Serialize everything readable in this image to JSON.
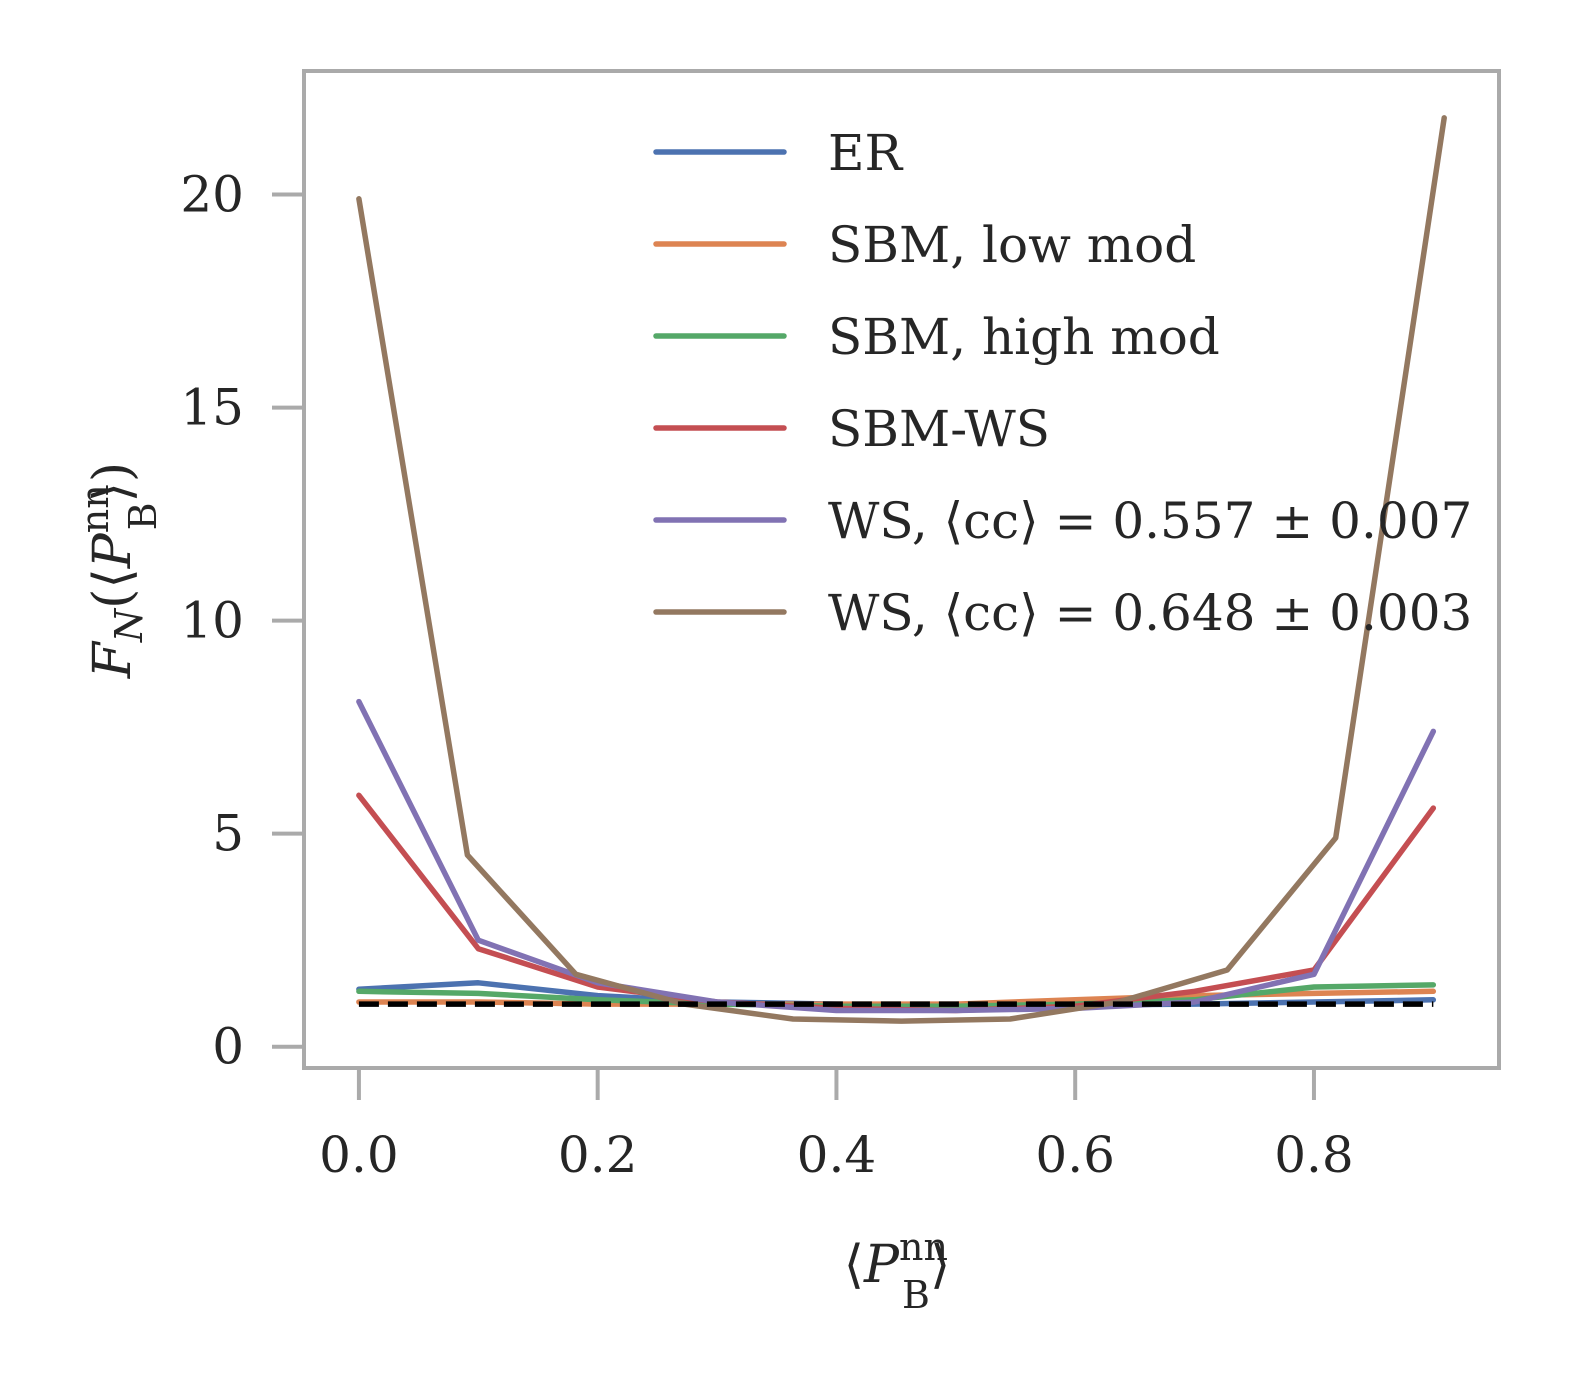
{
  "chart_data": {
    "type": "line",
    "xlabel": {
      "open": "⟨",
      "var": "P",
      "sup": "nn",
      "sub": "B",
      "close": "⟩"
    },
    "ylabel": {
      "prefix": "F",
      "prefix_sub": "N",
      "open": "(⟨",
      "var": "P",
      "sup": "nn",
      "sub": "B",
      "close": "⟩)"
    },
    "xlim": [
      -0.046,
      0.955
    ],
    "ylim": [
      -0.5,
      22.9
    ],
    "xticks": [
      {
        "value": 0.0,
        "label": "0.0"
      },
      {
        "value": 0.2,
        "label": "0.2"
      },
      {
        "value": 0.4,
        "label": "0.4"
      },
      {
        "value": 0.6,
        "label": "0.6"
      },
      {
        "value": 0.8,
        "label": "0.8"
      }
    ],
    "yticks": [
      {
        "value": 0,
        "label": "0"
      },
      {
        "value": 5,
        "label": "5"
      },
      {
        "value": 10,
        "label": "10"
      },
      {
        "value": 15,
        "label": "15"
      },
      {
        "value": 20,
        "label": "20"
      }
    ],
    "grid": false,
    "legend_position": "top-right",
    "x": [
      0.0,
      0.1,
      0.2,
      0.3,
      0.4,
      0.5,
      0.6,
      0.7,
      0.8,
      0.9
    ],
    "series": [
      {
        "name": "ER",
        "color": "#4c72b0",
        "x": [
          0.0,
          0.1,
          0.2,
          0.3,
          0.4,
          0.5,
          0.6,
          0.7,
          0.8,
          0.9
        ],
        "values": [
          1.35,
          1.5,
          1.2,
          1.05,
          1.0,
          0.95,
          0.98,
          1.0,
          1.05,
          1.1
        ]
      },
      {
        "name": "SBM, low mod",
        "color": "#dd8452",
        "x": [
          0.0,
          0.1,
          0.2,
          0.3,
          0.4,
          0.5,
          0.6,
          0.7,
          0.8,
          0.9
        ],
        "values": [
          1.05,
          1.05,
          1.0,
          1.0,
          1.0,
          1.0,
          1.1,
          1.2,
          1.25,
          1.3
        ]
      },
      {
        "name": "SBM, high mod",
        "color": "#55a868",
        "x": [
          0.0,
          0.1,
          0.2,
          0.3,
          0.4,
          0.5,
          0.6,
          0.7,
          0.8,
          0.9
        ],
        "values": [
          1.3,
          1.25,
          1.1,
          1.0,
          0.95,
          0.95,
          1.0,
          1.1,
          1.4,
          1.45
        ]
      },
      {
        "name": "SBM-WS",
        "color": "#c44e52",
        "x": [
          0.0,
          0.1,
          0.2,
          0.3,
          0.4,
          0.5,
          0.6,
          0.7,
          0.8,
          0.9
        ],
        "values": [
          5.9,
          2.3,
          1.4,
          1.05,
          0.9,
          0.85,
          0.95,
          1.3,
          1.8,
          5.6
        ]
      },
      {
        "name": "WS, ⟨cc⟩ = 0.557 ± 0.007",
        "color": "#8172b3",
        "x": [
          0.0,
          0.1,
          0.2,
          0.3,
          0.4,
          0.5,
          0.6,
          0.7,
          0.8,
          0.9
        ],
        "values": [
          8.1,
          2.5,
          1.5,
          1.05,
          0.85,
          0.85,
          0.9,
          1.05,
          1.7,
          7.4
        ]
      },
      {
        "name": "WS, ⟨cc⟩ = 0.648 ± 0.003",
        "color": "#937860",
        "x": [
          0.0,
          0.0909,
          0.1818,
          0.2727,
          0.3636,
          0.4545,
          0.5455,
          0.6364,
          0.7273,
          0.8182,
          0.9091
        ],
        "values": [
          19.9,
          4.5,
          1.7,
          1.0,
          0.65,
          0.6,
          0.65,
          1.05,
          1.8,
          4.9,
          21.8
        ]
      }
    ],
    "reference_line": {
      "y": 1.0,
      "color": "#000000",
      "style": "dashed"
    }
  }
}
